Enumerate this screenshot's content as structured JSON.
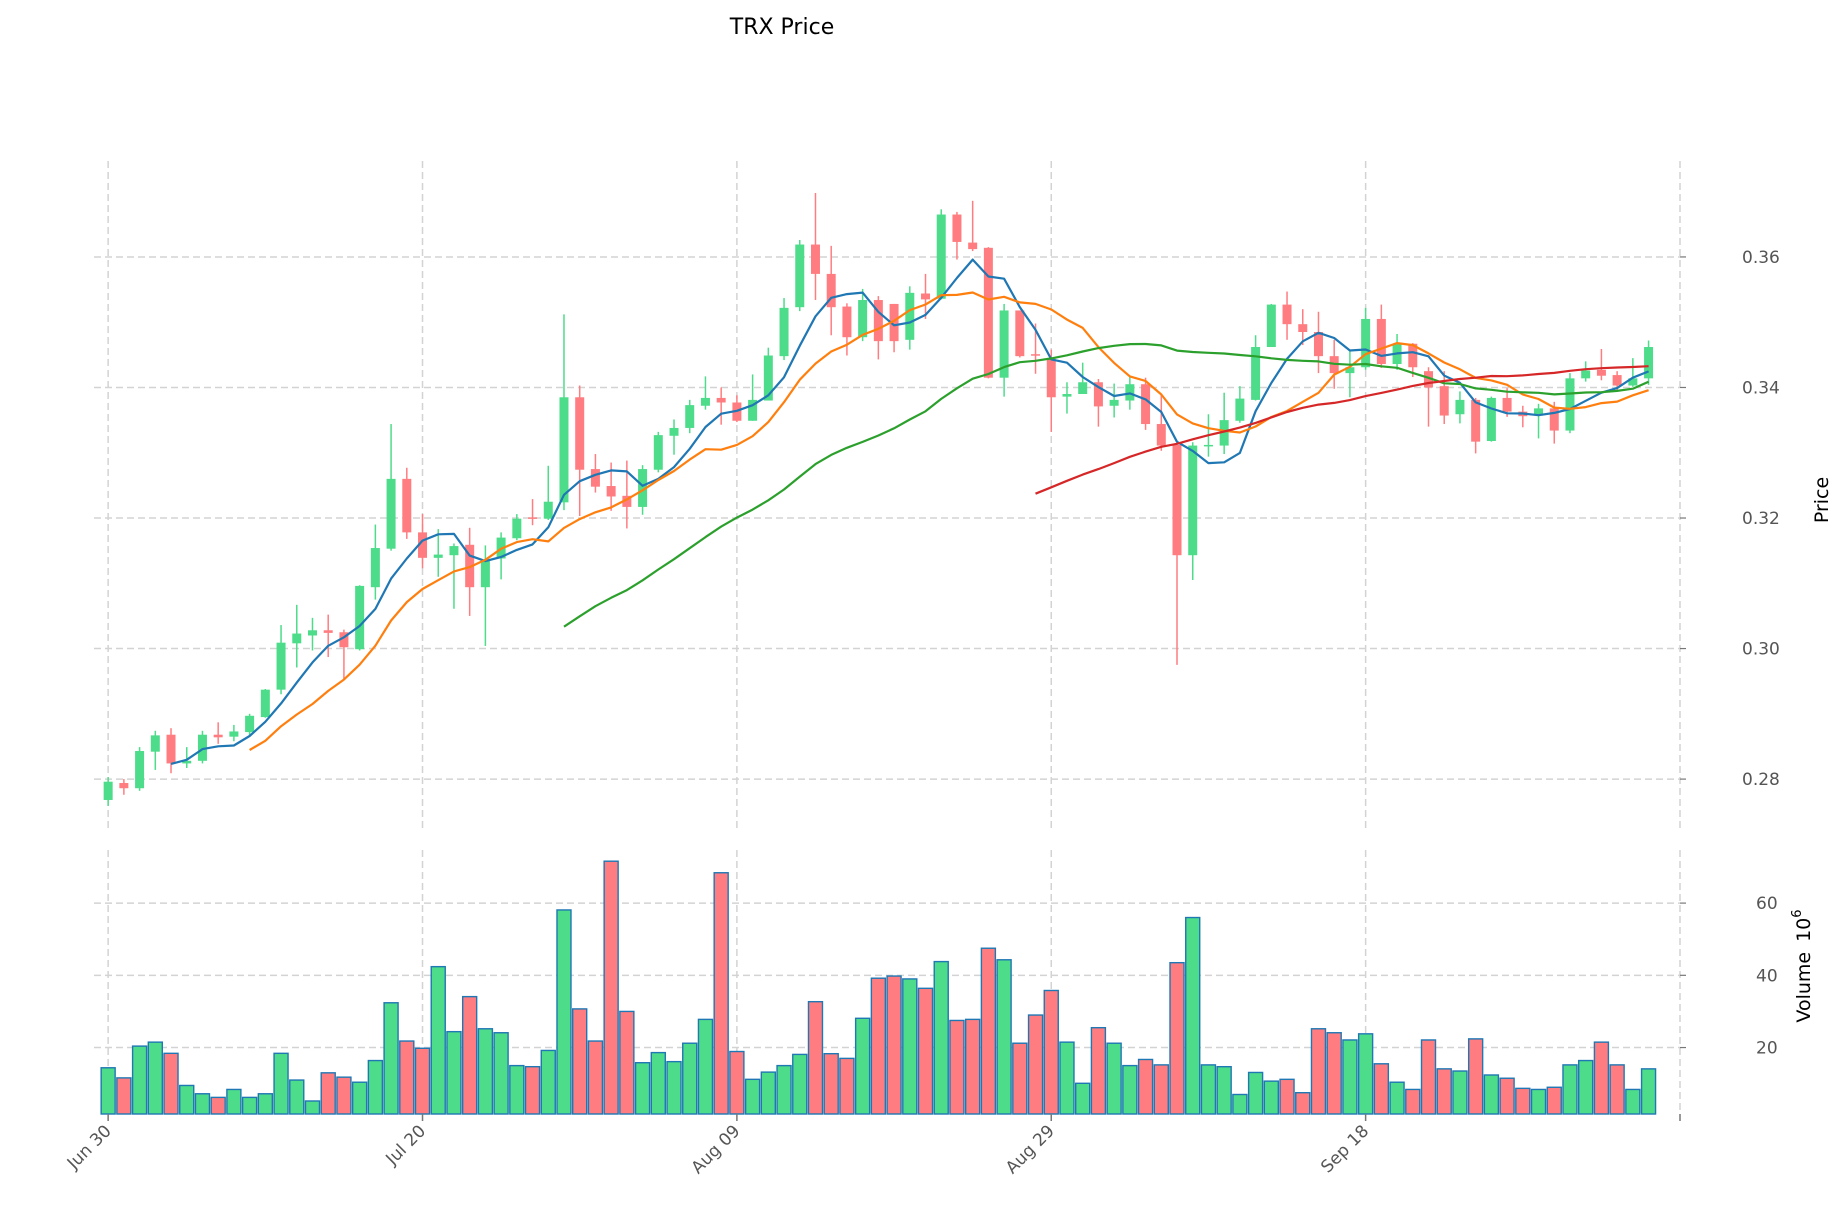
{
  "chart_data": {
    "type": "candlestick",
    "title": "TRX Price",
    "ylabel": "Price",
    "volume_label": "Volume",
    "volume_multiplier_base": "10",
    "volume_multiplier_exp": "6",
    "colors": {
      "up": "#4ddc8a",
      "down": "#ff7d80",
      "volume_edge": "#1f77b4",
      "grid": "#d3d3d3"
    },
    "ylim": [
      0.2722,
      0.3747
    ],
    "yticks": [
      "0.28",
      "0.30",
      "0.32",
      "0.34",
      "0.36"
    ],
    "volume_ylim": [
      1.6,
      74.7
    ],
    "volume_ticks": [
      "20",
      "40",
      "60"
    ],
    "xlim": [
      -0.9,
      100
    ],
    "xticks": [
      {
        "day": 0,
        "label": "Jun 30"
      },
      {
        "day": 20,
        "label": "Jul 20"
      },
      {
        "day": 40,
        "label": "Aug 09"
      },
      {
        "day": 60,
        "label": "Aug 29"
      },
      {
        "day": 80,
        "label": "Sep 18"
      },
      {
        "day": 100,
        "label": ""
      }
    ],
    "moving_averages": [
      {
        "window": 5,
        "color": "#1f77b4"
      },
      {
        "window": 10,
        "color": "#ff7f0e"
      },
      {
        "window": 30,
        "color": "#2ca02c"
      },
      {
        "window": 60,
        "color": "#d62728"
      }
    ],
    "ohlc_fields": [
      "open",
      "high",
      "low",
      "close"
    ],
    "ohlc": [
      [
        0.2768,
        0.2803,
        0.2759,
        0.2796
      ],
      [
        0.2794,
        0.28,
        0.2776,
        0.2786
      ],
      [
        0.2786,
        0.2849,
        0.2782,
        0.2843
      ],
      [
        0.2842,
        0.2874,
        0.2814,
        0.2867
      ],
      [
        0.2868,
        0.2878,
        0.2809,
        0.2824
      ],
      [
        0.2824,
        0.2849,
        0.2817,
        0.2828
      ],
      [
        0.2828,
        0.2874,
        0.2824,
        0.2868
      ],
      [
        0.2868,
        0.2887,
        0.2854,
        0.2864
      ],
      [
        0.2865,
        0.2883,
        0.2858,
        0.2873
      ],
      [
        0.2872,
        0.29,
        0.2865,
        0.2897
      ],
      [
        0.2895,
        0.2938,
        0.2894,
        0.2937
      ],
      [
        0.2937,
        0.3036,
        0.293,
        0.3009
      ],
      [
        0.3008,
        0.3067,
        0.2971,
        0.3023
      ],
      [
        0.302,
        0.3047,
        0.2997,
        0.3028
      ],
      [
        0.3028,
        0.3052,
        0.2987,
        0.3024
      ],
      [
        0.3025,
        0.3029,
        0.2953,
        0.3002
      ],
      [
        0.2999,
        0.3097,
        0.2997,
        0.3096
      ],
      [
        0.3094,
        0.319,
        0.3075,
        0.3154
      ],
      [
        0.3153,
        0.3344,
        0.315,
        0.326
      ],
      [
        0.326,
        0.3277,
        0.3168,
        0.3178
      ],
      [
        0.3178,
        0.3206,
        0.3123,
        0.3139
      ],
      [
        0.3139,
        0.3183,
        0.311,
        0.3144
      ],
      [
        0.3143,
        0.3161,
        0.3061,
        0.3157
      ],
      [
        0.3159,
        0.3185,
        0.305,
        0.3094
      ],
      [
        0.3094,
        0.3158,
        0.3004,
        0.3136
      ],
      [
        0.3138,
        0.3178,
        0.3106,
        0.317
      ],
      [
        0.3169,
        0.3206,
        0.3166,
        0.3199
      ],
      [
        0.3201,
        0.3229,
        0.3189,
        0.3199
      ],
      [
        0.3199,
        0.328,
        0.3197,
        0.3225
      ],
      [
        0.3224,
        0.3512,
        0.3212,
        0.3385
      ],
      [
        0.3385,
        0.3403,
        0.3203,
        0.3274
      ],
      [
        0.3275,
        0.3298,
        0.3239,
        0.3248
      ],
      [
        0.3249,
        0.3285,
        0.3211,
        0.3233
      ],
      [
        0.3234,
        0.3288,
        0.3184,
        0.3217
      ],
      [
        0.3217,
        0.3281,
        0.3205,
        0.3275
      ],
      [
        0.3274,
        0.3332,
        0.327,
        0.3327
      ],
      [
        0.3326,
        0.3351,
        0.3297,
        0.3338
      ],
      [
        0.3338,
        0.3381,
        0.333,
        0.3373
      ],
      [
        0.3372,
        0.3417,
        0.3366,
        0.3384
      ],
      [
        0.3384,
        0.34,
        0.3343,
        0.3377
      ],
      [
        0.3377,
        0.3388,
        0.3347,
        0.3349
      ],
      [
        0.3349,
        0.342,
        0.3349,
        0.3381
      ],
      [
        0.338,
        0.3461,
        0.338,
        0.3449
      ],
      [
        0.3448,
        0.3537,
        0.3442,
        0.3522
      ],
      [
        0.3523,
        0.3626,
        0.3517,
        0.3619
      ],
      [
        0.3619,
        0.3698,
        0.3534,
        0.3574
      ],
      [
        0.3574,
        0.3617,
        0.348,
        0.3523
      ],
      [
        0.3524,
        0.3529,
        0.3449,
        0.3477
      ],
      [
        0.3477,
        0.3551,
        0.3471,
        0.3534
      ],
      [
        0.3534,
        0.354,
        0.3443,
        0.3471
      ],
      [
        0.3528,
        0.3528,
        0.3454,
        0.3471
      ],
      [
        0.3473,
        0.3555,
        0.3458,
        0.3545
      ],
      [
        0.3544,
        0.3574,
        0.3505,
        0.3535
      ],
      [
        0.3536,
        0.3673,
        0.3535,
        0.3665
      ],
      [
        0.3665,
        0.3669,
        0.3596,
        0.3623
      ],
      [
        0.3622,
        0.3686,
        0.3609,
        0.3612
      ],
      [
        0.3614,
        0.3615,
        0.3414,
        0.3415
      ],
      [
        0.3415,
        0.3528,
        0.3386,
        0.3518
      ],
      [
        0.3518,
        0.3518,
        0.3446,
        0.3448
      ],
      [
        0.3451,
        0.3498,
        0.3421,
        0.3449
      ],
      [
        0.3444,
        0.3458,
        0.3332,
        0.3385
      ],
      [
        0.3386,
        0.3408,
        0.336,
        0.339
      ],
      [
        0.339,
        0.3438,
        0.339,
        0.3408
      ],
      [
        0.3408,
        0.3413,
        0.334,
        0.3371
      ],
      [
        0.3372,
        0.3406,
        0.3354,
        0.3381
      ],
      [
        0.338,
        0.3417,
        0.3366,
        0.3405
      ],
      [
        0.3405,
        0.3415,
        0.3335,
        0.3344
      ],
      [
        0.3344,
        0.3389,
        0.3303,
        0.3311
      ],
      [
        0.3312,
        0.3312,
        0.2975,
        0.3143
      ],
      [
        0.3143,
        0.3316,
        0.3105,
        0.3311
      ],
      [
        0.3311,
        0.3359,
        0.3294,
        0.3312
      ],
      [
        0.3311,
        0.3392,
        0.3298,
        0.335
      ],
      [
        0.3349,
        0.3402,
        0.3346,
        0.3383
      ],
      [
        0.3381,
        0.348,
        0.338,
        0.3462
      ],
      [
        0.3462,
        0.3528,
        0.3462,
        0.3527
      ],
      [
        0.3527,
        0.3547,
        0.3473,
        0.3497
      ],
      [
        0.3497,
        0.352,
        0.3465,
        0.3485
      ],
      [
        0.3485,
        0.3516,
        0.3422,
        0.3448
      ],
      [
        0.3448,
        0.3473,
        0.3398,
        0.3422
      ],
      [
        0.3422,
        0.3456,
        0.3385,
        0.3431
      ],
      [
        0.3431,
        0.3522,
        0.3427,
        0.3505
      ],
      [
        0.3505,
        0.3527,
        0.343,
        0.3436
      ],
      [
        0.3436,
        0.3482,
        0.3427,
        0.3467
      ],
      [
        0.3467,
        0.3468,
        0.3416,
        0.3431
      ],
      [
        0.3425,
        0.3431,
        0.334,
        0.34
      ],
      [
        0.3402,
        0.3425,
        0.3344,
        0.3357
      ],
      [
        0.3359,
        0.3394,
        0.3345,
        0.3381
      ],
      [
        0.3381,
        0.3384,
        0.3299,
        0.3317
      ],
      [
        0.3318,
        0.3386,
        0.3317,
        0.3384
      ],
      [
        0.3384,
        0.3399,
        0.3355,
        0.3363
      ],
      [
        0.3363,
        0.3372,
        0.3339,
        0.3356
      ],
      [
        0.3357,
        0.3375,
        0.3322,
        0.3368
      ],
      [
        0.3368,
        0.3378,
        0.3314,
        0.3334
      ],
      [
        0.3334,
        0.3422,
        0.333,
        0.3414
      ],
      [
        0.3414,
        0.344,
        0.3409,
        0.3426
      ],
      [
        0.3427,
        0.3459,
        0.3411,
        0.3418
      ],
      [
        0.3419,
        0.3425,
        0.3396,
        0.3403
      ],
      [
        0.3403,
        0.3445,
        0.3401,
        0.3414
      ],
      [
        0.3414,
        0.3472,
        0.3404,
        0.3462
      ]
    ],
    "volume": [
      14.4,
      11.6,
      20.4,
      21.5,
      18.4,
      9.5,
      7.2,
      6.2,
      8.4,
      6.2,
      7.2,
      18.4,
      11.0,
      5.2,
      13.0,
      11.8,
      10.4,
      16.4,
      32.4,
      21.8,
      19.8,
      42.4,
      24.4,
      34.1,
      25.2,
      24.1,
      15.0,
      14.7,
      19.2,
      58.1,
      30.7,
      21.8,
      71.6,
      30.0,
      15.8,
      18.6,
      16.1,
      21.2,
      27.8,
      68.4,
      18.9,
      11.2,
      13.2,
      15.0,
      18.1,
      32.7,
      18.3,
      17.0,
      28.1,
      39.2,
      39.8,
      39.0,
      36.4,
      43.8,
      27.5,
      27.8,
      47.5,
      44.3,
      21.2,
      29.0,
      35.8,
      21.5,
      10.1,
      25.5,
      21.2,
      15.0,
      16.7,
      15.2,
      43.5,
      56.0,
      15.2,
      14.7,
      7.0,
      13.1,
      10.7,
      11.2,
      7.5,
      25.2,
      24.1,
      22.1,
      23.8,
      15.5,
      10.4,
      8.4,
      22.1,
      14.1,
      13.5,
      22.4,
      12.4,
      11.5,
      8.7,
      8.4,
      9.0,
      15.2,
      16.4,
      21.5,
      15.2,
      8.4,
      14.1
    ]
  }
}
